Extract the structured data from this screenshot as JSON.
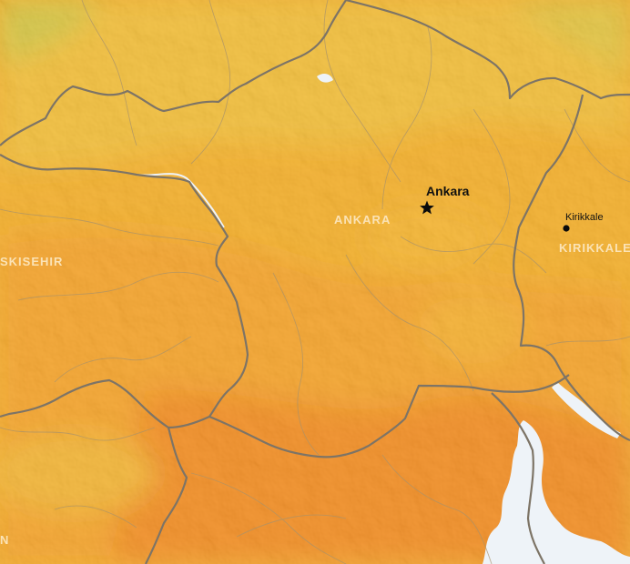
{
  "map": {
    "capital": {
      "name": "Ankara"
    },
    "towns": [
      {
        "name": "Kirikkale"
      }
    ],
    "provinces": [
      {
        "name": "ANKARA"
      },
      {
        "name": "KIRIKKALE"
      },
      {
        "name": "SKISEHIR"
      },
      {
        "name": "N"
      }
    ],
    "colors": {
      "warm_yellow": "#f0b31e",
      "orange": "#f39a12",
      "deep_orange": "#f07f0c",
      "boundary": "#7d7466",
      "water": "#eef3f8",
      "label": "#fbe3b6"
    }
  }
}
